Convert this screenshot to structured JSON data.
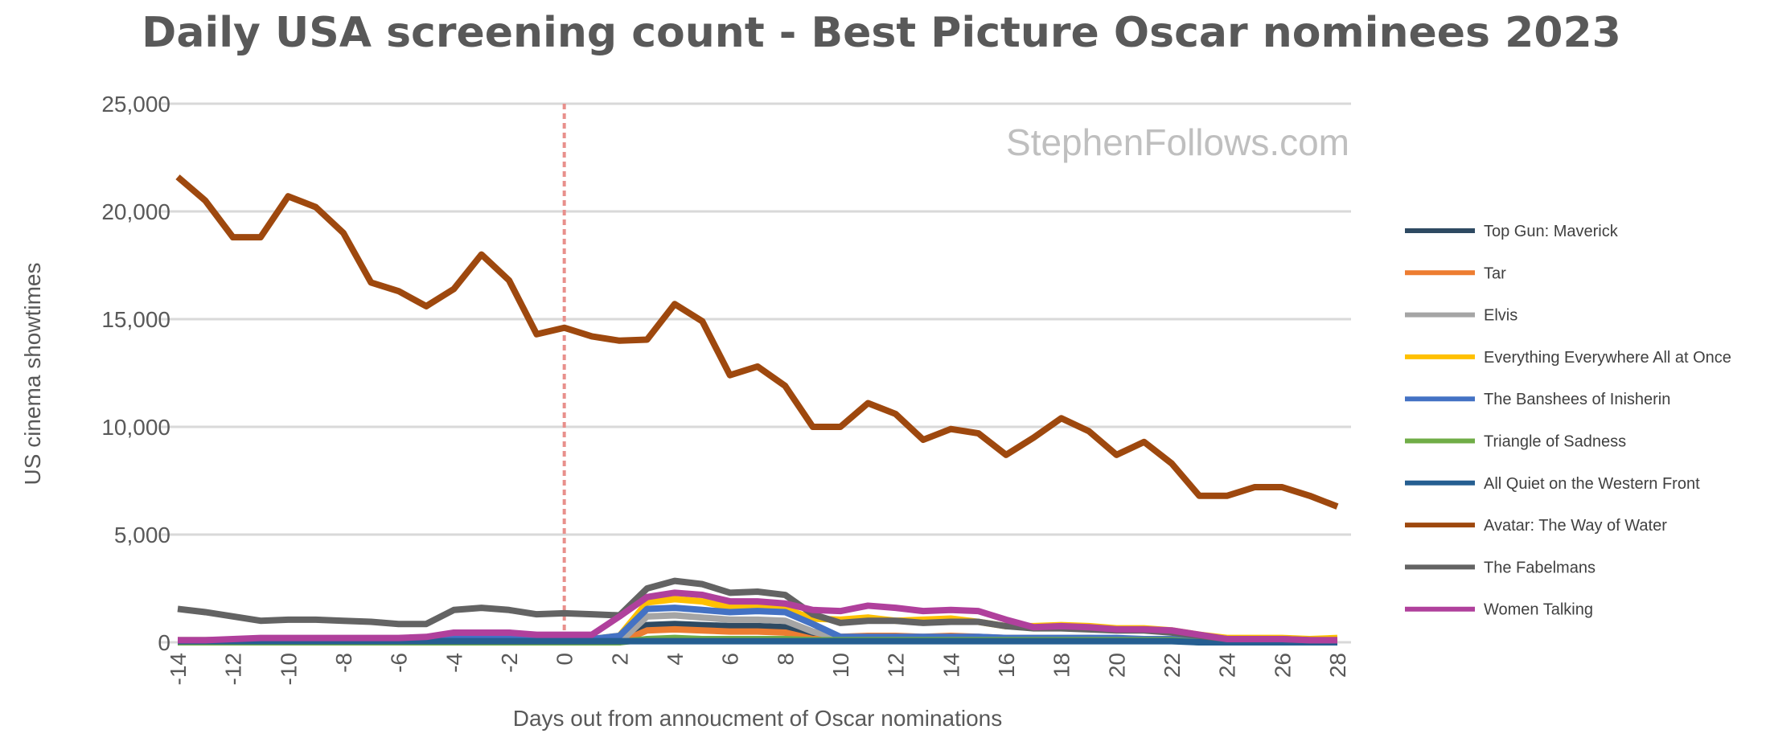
{
  "chart_data": {
    "type": "line",
    "title": "Daily USA screening count - Best Picture Oscar nominees 2023",
    "xlabel": "Days out from annoucment of Oscar nominations",
    "ylabel": "US cinema showtimes",
    "watermark": "StephenFollows.com",
    "ylim": [
      0,
      25000
    ],
    "yticks": [
      "0",
      "5,000",
      "10,000",
      "15,000",
      "20,000",
      "25,000"
    ],
    "ytick_values": [
      0,
      5000,
      10000,
      15000,
      20000,
      25000
    ],
    "xlim": [
      -14,
      28
    ],
    "xticks": [
      "-14",
      "-12",
      "-10",
      "-8",
      "-6",
      "-4",
      "-2",
      "0",
      "2",
      "4",
      "6",
      "8",
      "10",
      "12",
      "14",
      "16",
      "18",
      "20",
      "22",
      "24",
      "26",
      "28"
    ],
    "x": [
      -14,
      -13,
      -12,
      -11,
      -10,
      -9,
      -8,
      -7,
      -6,
      -5,
      -4,
      -3,
      -2,
      -1,
      0,
      1,
      2,
      3,
      4,
      5,
      6,
      7,
      8,
      9,
      10,
      11,
      12,
      13,
      14,
      15,
      16,
      17,
      18,
      19,
      20,
      21,
      22,
      23,
      24,
      25,
      26,
      27,
      28
    ],
    "reference_line_x": 0,
    "grid": true,
    "legend_position": "right",
    "series": [
      {
        "name": "Top Gun: Maverick",
        "color": "#2e4a62",
        "values": [
          0,
          0,
          0,
          0,
          0,
          0,
          0,
          0,
          0,
          0,
          0,
          0,
          0,
          0,
          0,
          0,
          0,
          800,
          850,
          800,
          750,
          750,
          700,
          200,
          100,
          100,
          100,
          100,
          100,
          100,
          100,
          100,
          100,
          100,
          100,
          100,
          100,
          50,
          0,
          0,
          0,
          0,
          0
        ]
      },
      {
        "name": "Tar",
        "color": "#ed7d31",
        "values": [
          0,
          0,
          0,
          0,
          0,
          0,
          0,
          0,
          0,
          0,
          0,
          0,
          0,
          0,
          0,
          0,
          0,
          550,
          600,
          550,
          500,
          500,
          450,
          150,
          250,
          300,
          300,
          250,
          300,
          250,
          200,
          200,
          200,
          200,
          150,
          150,
          150,
          50,
          50,
          50,
          50,
          50,
          50
        ]
      },
      {
        "name": "Elvis",
        "color": "#a5a5a5",
        "values": [
          0,
          0,
          0,
          0,
          0,
          0,
          0,
          0,
          0,
          0,
          0,
          0,
          0,
          0,
          0,
          0,
          0,
          1200,
          1250,
          1150,
          1050,
          1050,
          1000,
          500,
          200,
          200,
          200,
          200,
          200,
          200,
          150,
          150,
          150,
          150,
          150,
          150,
          150,
          100,
          50,
          50,
          50,
          50,
          50
        ]
      },
      {
        "name": "Everything Everywhere All at Once",
        "color": "#ffc000",
        "values": [
          100,
          100,
          100,
          100,
          100,
          100,
          100,
          100,
          100,
          100,
          150,
          150,
          150,
          150,
          150,
          150,
          300,
          1850,
          2000,
          1900,
          1600,
          1650,
          1550,
          1100,
          1050,
          1150,
          1000,
          1050,
          1100,
          950,
          750,
          750,
          800,
          750,
          650,
          650,
          550,
          350,
          200,
          200,
          200,
          150,
          200
        ]
      },
      {
        "name": "The Banshees of Inisherin",
        "color": "#4472c4",
        "values": [
          100,
          100,
          100,
          100,
          100,
          100,
          100,
          100,
          100,
          100,
          150,
          150,
          150,
          150,
          150,
          150,
          300,
          1550,
          1600,
          1500,
          1400,
          1450,
          1400,
          850,
          250,
          250,
          250,
          250,
          250,
          250,
          200,
          200,
          200,
          200,
          200,
          150,
          150,
          100,
          50,
          50,
          50,
          50,
          50
        ]
      },
      {
        "name": "Triangle of Sadness",
        "color": "#70ad47",
        "values": [
          0,
          0,
          0,
          0,
          0,
          0,
          0,
          0,
          0,
          0,
          0,
          0,
          0,
          0,
          0,
          0,
          0,
          150,
          200,
          150,
          150,
          150,
          150,
          100,
          100,
          100,
          100,
          100,
          100,
          100,
          100,
          100,
          100,
          100,
          100,
          100,
          100,
          0,
          0,
          0,
          0,
          0,
          0
        ]
      },
      {
        "name": "All Quiet on the Western Front",
        "color": "#255e91",
        "values": [
          50,
          50,
          50,
          50,
          50,
          50,
          50,
          50,
          50,
          50,
          50,
          50,
          50,
          50,
          50,
          50,
          50,
          50,
          50,
          50,
          50,
          50,
          50,
          50,
          50,
          50,
          50,
          50,
          50,
          50,
          50,
          50,
          50,
          50,
          50,
          50,
          50,
          0,
          0,
          0,
          0,
          0,
          0
        ]
      },
      {
        "name": "Avatar: The Way of Water",
        "color": "#9e480e",
        "values": [
          21600,
          20500,
          18800,
          18800,
          20700,
          20200,
          19000,
          16700,
          16300,
          15600,
          16400,
          18000,
          16800,
          14300,
          14600,
          14200,
          14000,
          14050,
          15700,
          14900,
          12400,
          12800,
          11900,
          10000,
          10000,
          11100,
          10600,
          9400,
          9900,
          9700,
          8700,
          9500,
          10400,
          9800,
          8700,
          9300,
          8300,
          6800,
          6800,
          7200,
          7200,
          6800,
          6300
        ]
      },
      {
        "name": "The Fabelmans",
        "color": "#636363",
        "values": [
          1550,
          1400,
          1200,
          1000,
          1050,
          1050,
          1000,
          950,
          850,
          850,
          1500,
          1600,
          1500,
          1300,
          1350,
          1300,
          1250,
          2500,
          2850,
          2700,
          2300,
          2350,
          2200,
          1300,
          900,
          1000,
          1000,
          900,
          950,
          950,
          750,
          650,
          650,
          600,
          550,
          550,
          450,
          300,
          150,
          150,
          150,
          100,
          100
        ]
      },
      {
        "name": "Women Talking",
        "color": "#b0409c",
        "values": [
          100,
          100,
          150,
          200,
          200,
          200,
          200,
          200,
          200,
          250,
          450,
          450,
          450,
          350,
          350,
          350,
          1200,
          2100,
          2300,
          2200,
          1900,
          1900,
          1800,
          1500,
          1450,
          1700,
          1600,
          1450,
          1500,
          1450,
          1050,
          700,
          750,
          700,
          600,
          600,
          550,
          350,
          150,
          150,
          150,
          100,
          100
        ]
      }
    ]
  }
}
